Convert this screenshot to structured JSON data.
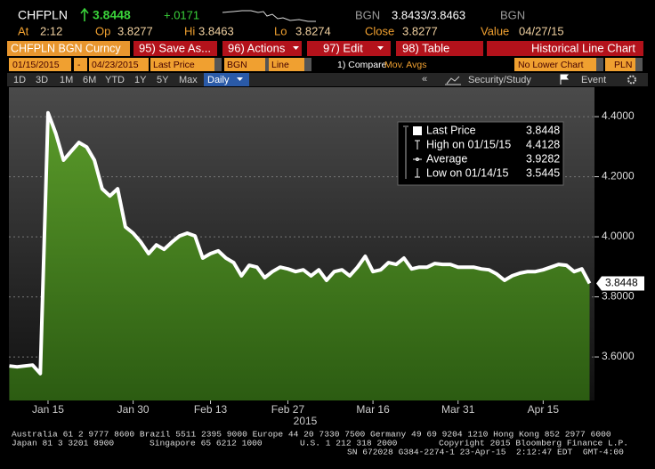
{
  "header": {
    "ticker": "CHFPLN",
    "last": "3.8448",
    "change": "+.0171",
    "source": "BGN",
    "bid_ask": "3.8433/3.8463",
    "source2": "BGN"
  },
  "quote": [
    {
      "label": "At",
      "value": "2:12"
    },
    {
      "label": "Op",
      "value": "3.8277"
    },
    {
      "label": "Hi",
      "value": "3.8463"
    },
    {
      "label": "Lo",
      "value": "3.8274"
    },
    {
      "label": "Close",
      "value": "3.8277"
    },
    {
      "label": "Value",
      "value": "04/27/15"
    }
  ],
  "toolbar": {
    "security": "CHFPLN BGN Curncy",
    "buttons": [
      "95) Save As...",
      "96) Actions",
      "97) Edit",
      "98) Table"
    ],
    "title": "Historical Line Chart"
  },
  "settings": {
    "start": "01/15/2015",
    "separator": "-",
    "end": "04/23/2015",
    "field": "Last Price",
    "source": "BGN",
    "style": "Line",
    "compare": "1) Compare",
    "mov_avgs": "Mov. Avgs",
    "lower": "No Lower Chart",
    "currency": "PLN"
  },
  "periods": [
    "1D",
    "3D",
    "1M",
    "6M",
    "YTD",
    "1Y",
    "5Y",
    "Max"
  ],
  "frequency": "Daily",
  "nav": {
    "back": "«",
    "study": "Security/Study",
    "event": "Event"
  },
  "footer": {
    "line1": "Australia 61 2 9777 8600 Brazil 5511 2395 9000 Europe 44 20 7330 7500 Germany 49 69 9204 1210 Hong Kong 852 2977 6000",
    "line2": [
      "Japan 81 3 3201 8900",
      "Singapore 65 6212 1000",
      "U.S. 1 212 318 2000",
      "Copyright 2015 Bloomberg Finance L.P."
    ],
    "line3": "SN 672028 G384-2274-1 23-Apr-15  2:12:47 EDT  GMT-4:00"
  },
  "chart_data": {
    "type": "area",
    "x_axis_label": "2015",
    "categories": [
      null,
      null,
      null,
      null,
      null,
      "Jan 15",
      null,
      null,
      null,
      null,
      null,
      null,
      null,
      null,
      null,
      null,
      "Jan 30",
      null,
      null,
      null,
      null,
      null,
      null,
      null,
      null,
      null,
      "Feb 13",
      null,
      null,
      null,
      null,
      null,
      null,
      null,
      null,
      null,
      "Feb 27",
      null,
      null,
      null,
      null,
      null,
      null,
      null,
      null,
      null,
      null,
      "Mar 16",
      null,
      null,
      null,
      null,
      null,
      null,
      null,
      null,
      null,
      null,
      "Mar 31",
      null,
      null,
      null,
      null,
      null,
      null,
      null,
      null,
      null,
      null,
      "Apr 15",
      null,
      null,
      null,
      null,
      null,
      null
    ],
    "values": [
      3.57,
      3.567,
      3.57,
      3.573,
      3.5445,
      4.4128,
      4.344,
      4.255,
      4.285,
      4.314,
      4.299,
      4.255,
      4.16,
      4.136,
      4.16,
      4.033,
      4.012,
      3.982,
      3.944,
      3.973,
      3.958,
      3.982,
      4.003,
      4.012,
      4.003,
      3.929,
      3.944,
      3.953,
      3.929,
      3.914,
      3.87,
      3.905,
      3.899,
      3.864,
      3.884,
      3.899,
      3.893,
      3.884,
      3.89,
      3.87,
      3.89,
      3.855,
      3.884,
      3.89,
      3.87,
      3.899,
      3.935,
      3.884,
      3.89,
      3.914,
      3.908,
      3.929,
      3.893,
      3.899,
      3.899,
      3.911,
      3.908,
      3.908,
      3.899,
      3.899,
      3.899,
      3.893,
      3.89,
      3.876,
      3.855,
      3.87,
      3.879,
      3.884,
      3.884,
      3.89,
      3.899,
      3.908,
      3.905,
      3.884,
      3.893,
      3.8448
    ],
    "color": "#3d7a1c",
    "line_color": "#ffffff",
    "ylim": [
      3.455,
      4.498
    ],
    "yticks": [
      {
        "value": 3.6,
        "label": "3.6000"
      },
      {
        "value": 3.8,
        "label": "3.8000"
      },
      {
        "value": 4.0,
        "label": "4.0000"
      },
      {
        "value": 4.2,
        "label": "4.2000"
      },
      {
        "value": 4.4,
        "label": "4.4000"
      }
    ],
    "grid": true,
    "stats": [
      {
        "label": "Last Price",
        "value": 3.8448
      },
      {
        "label": "High on 01/15/15",
        "value": 4.4128
      },
      {
        "label": "Average",
        "value": 3.9282
      },
      {
        "label": "Low on 01/14/15",
        "value": 3.5445
      }
    ]
  }
}
